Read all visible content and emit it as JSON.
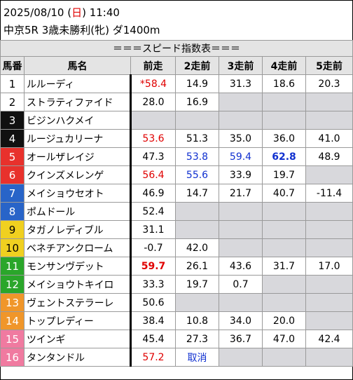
{
  "header": {
    "date_prefix": "2025/08/10 (",
    "weekday": "日",
    "date_suffix": ") 11:40",
    "race": "中京5R 3歳未勝利(牝) ダ1400m"
  },
  "table": {
    "title": "＝＝＝スピード指数表＝＝＝",
    "columns": [
      "馬番",
      "馬名",
      "前走",
      "2走前",
      "3走前",
      "4走前",
      "5走前"
    ],
    "colors": {
      "gate_colors": [
        "#ffffff",
        "#111111",
        "#e8312c",
        "#2864c8",
        "#f0d020",
        "#2aa62a",
        "#f0962a",
        "#f07aa0"
      ],
      "red_text": "#e00000",
      "blue_text": "#1030d0",
      "empty_cell": "#d8d8dc"
    },
    "rows": [
      {
        "num": "1",
        "gate": 1,
        "name": "ルルーディ",
        "vals": [
          {
            "t": "*58.4",
            "c": "red"
          },
          {
            "t": "14.9"
          },
          {
            "t": "31.3"
          },
          {
            "t": "18.6"
          },
          {
            "t": "20.3"
          }
        ]
      },
      {
        "num": "2",
        "gate": 1,
        "name": "ストラティファイド",
        "vals": [
          {
            "t": "28.0"
          },
          {
            "t": "16.9"
          },
          null,
          null,
          null
        ]
      },
      {
        "num": "3",
        "gate": 2,
        "name": "ビジンハクメイ",
        "vals": [
          null,
          null,
          null,
          null,
          null
        ]
      },
      {
        "num": "4",
        "gate": 2,
        "name": "ルージュカリーナ",
        "vals": [
          {
            "t": "53.6",
            "c": "red"
          },
          {
            "t": "51.3"
          },
          {
            "t": "35.0"
          },
          {
            "t": "36.0"
          },
          {
            "t": "41.0"
          }
        ]
      },
      {
        "num": "5",
        "gate": 3,
        "name": "オールザレイジ",
        "vals": [
          {
            "t": "47.3"
          },
          {
            "t": "53.8",
            "c": "blue"
          },
          {
            "t": "59.4",
            "c": "blue"
          },
          {
            "t": "62.8",
            "c": "blue",
            "b": true
          },
          {
            "t": "48.9"
          }
        ]
      },
      {
        "num": "6",
        "gate": 3,
        "name": "クインズメレンゲ",
        "vals": [
          {
            "t": "56.4",
            "c": "red"
          },
          {
            "t": "55.6",
            "c": "blue"
          },
          {
            "t": "33.9"
          },
          {
            "t": "19.7"
          },
          null
        ]
      },
      {
        "num": "7",
        "gate": 4,
        "name": "メイショウセオト",
        "vals": [
          {
            "t": "46.9"
          },
          {
            "t": "14.7"
          },
          {
            "t": "21.7"
          },
          {
            "t": "40.7"
          },
          {
            "t": "-11.4"
          }
        ]
      },
      {
        "num": "8",
        "gate": 4,
        "name": "ポムドール",
        "vals": [
          {
            "t": "52.4"
          },
          null,
          null,
          null,
          null
        ]
      },
      {
        "num": "9",
        "gate": 5,
        "name": "タガノレディブル",
        "vals": [
          {
            "t": "31.1"
          },
          null,
          null,
          null,
          null
        ]
      },
      {
        "num": "10",
        "gate": 5,
        "name": "ベネチアンクローム",
        "vals": [
          {
            "t": "-0.7"
          },
          {
            "t": "42.0"
          },
          null,
          null,
          null
        ]
      },
      {
        "num": "11",
        "gate": 6,
        "name": "モンサンヴデット",
        "vals": [
          {
            "t": "59.7",
            "c": "red",
            "b": true
          },
          {
            "t": "26.1"
          },
          {
            "t": "43.6"
          },
          {
            "t": "31.7"
          },
          {
            "t": "17.0"
          }
        ]
      },
      {
        "num": "12",
        "gate": 6,
        "name": "メイショウトキイロ",
        "vals": [
          {
            "t": "33.3"
          },
          {
            "t": "19.7"
          },
          {
            "t": "0.7"
          },
          null,
          null
        ]
      },
      {
        "num": "13",
        "gate": 7,
        "name": "ヴェントステラーレ",
        "vals": [
          {
            "t": "50.6"
          },
          null,
          null,
          null,
          null
        ]
      },
      {
        "num": "14",
        "gate": 7,
        "name": "トップレディー",
        "vals": [
          {
            "t": "38.4"
          },
          {
            "t": "10.8"
          },
          {
            "t": "34.0"
          },
          {
            "t": "20.0"
          },
          null
        ]
      },
      {
        "num": "15",
        "gate": 8,
        "name": "ツインギ",
        "vals": [
          {
            "t": "45.4"
          },
          {
            "t": "27.3"
          },
          {
            "t": "36.7"
          },
          {
            "t": "47.0"
          },
          {
            "t": "42.4"
          }
        ]
      },
      {
        "num": "16",
        "gate": 8,
        "name": "タンタンドル",
        "vals": [
          {
            "t": "57.2",
            "c": "red"
          },
          {
            "t": "取消",
            "c": "blue"
          },
          null,
          null,
          null
        ]
      }
    ]
  }
}
